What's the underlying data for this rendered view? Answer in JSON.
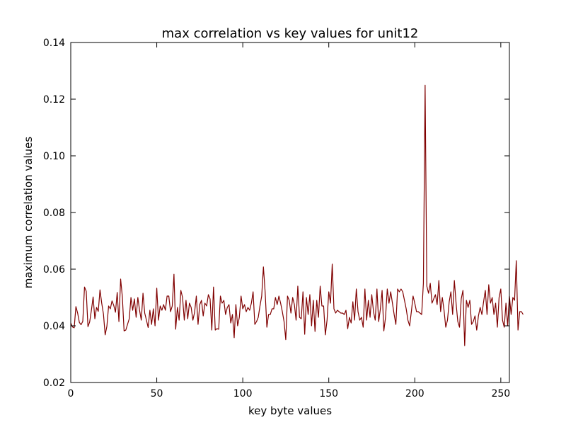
{
  "chart_data": {
    "type": "line",
    "title": "max correlation vs key values for unit12",
    "xlabel": "key byte values",
    "ylabel": "maximum correlation values",
    "xlim": [
      0,
      255
    ],
    "ylim": [
      0.02,
      0.14
    ],
    "xticks": [
      0,
      50,
      100,
      150,
      200,
      250
    ],
    "yticks": [
      0.02,
      0.04,
      0.06,
      0.08,
      0.1,
      0.12,
      0.14
    ],
    "xtick_labels": [
      "0",
      "50",
      "100",
      "150",
      "200",
      "250"
    ],
    "ytick_labels": [
      "0.02",
      "0.04",
      "0.06",
      "0.08",
      "0.10",
      "0.12",
      "0.14"
    ],
    "grid": false,
    "legend": "none",
    "line_color": "#800000",
    "series": [
      {
        "values": [
          0.041,
          0.0396,
          0.0393,
          0.0468,
          0.0445,
          0.0412,
          0.0404,
          0.0416,
          0.0537,
          0.0522,
          0.0397,
          0.0414,
          0.0455,
          0.0502,
          0.0425,
          0.0465,
          0.0451,
          0.0527,
          0.048,
          0.0442,
          0.0368,
          0.0398,
          0.047,
          0.046,
          0.0488,
          0.0472,
          0.0448,
          0.0518,
          0.0415,
          0.0565,
          0.0502,
          0.0382,
          0.0385,
          0.0405,
          0.0425,
          0.05,
          0.0455,
          0.0495,
          0.043,
          0.05,
          0.0455,
          0.042,
          0.0515,
          0.0445,
          0.042,
          0.0394,
          0.0455,
          0.0405,
          0.046,
          0.04,
          0.0533,
          0.042,
          0.047,
          0.0455,
          0.0475,
          0.0455,
          0.0505,
          0.0505,
          0.045,
          0.047,
          0.0582,
          0.0388,
          0.0465,
          0.042,
          0.0525,
          0.05,
          0.042,
          0.049,
          0.0425,
          0.048,
          0.0465,
          0.042,
          0.0448,
          0.0505,
          0.0405,
          0.0475,
          0.049,
          0.0435,
          0.048,
          0.047,
          0.051,
          0.0495,
          0.0385,
          0.0537,
          0.0385,
          0.039,
          0.0388,
          0.0505,
          0.048,
          0.049,
          0.044,
          0.0465,
          0.0475,
          0.041,
          0.044,
          0.0358,
          0.0475,
          0.04,
          0.043,
          0.0505,
          0.046,
          0.0475,
          0.045,
          0.0465,
          0.0455,
          0.048,
          0.052,
          0.0405,
          0.0415,
          0.043,
          0.047,
          0.0505,
          0.0608,
          0.052,
          0.0395,
          0.044,
          0.044,
          0.046,
          0.046,
          0.05,
          0.0475,
          0.0505,
          0.048,
          0.045,
          0.0415,
          0.0351,
          0.0505,
          0.049,
          0.0445,
          0.05,
          0.0475,
          0.042,
          0.054,
          0.043,
          0.0425,
          0.052,
          0.037,
          0.05,
          0.044,
          0.051,
          0.04,
          0.049,
          0.038,
          0.049,
          0.043,
          0.054,
          0.047,
          0.047,
          0.0368,
          0.042,
          0.052,
          0.048,
          0.0618,
          0.046,
          0.0445,
          0.0455,
          0.045,
          0.0445,
          0.0445,
          0.044,
          0.0455,
          0.039,
          0.043,
          0.041,
          0.0485,
          0.042,
          0.053,
          0.045,
          0.042,
          0.043,
          0.0395,
          0.053,
          0.042,
          0.049,
          0.043,
          0.051,
          0.045,
          0.042,
          0.053,
          0.0415,
          0.046,
          0.0525,
          0.0382,
          0.043,
          0.053,
          0.048,
          0.052,
          0.048,
          0.044,
          0.0405,
          0.053,
          0.052,
          0.053,
          0.052,
          0.049,
          0.046,
          0.042,
          0.04,
          0.045,
          0.0505,
          0.048,
          0.045,
          0.045,
          0.0445,
          0.044,
          0.055,
          0.1249,
          0.054,
          0.0515,
          0.055,
          0.048,
          0.0495,
          0.051,
          0.0475,
          0.056,
          0.045,
          0.05,
          0.0455,
          0.0395,
          0.042,
          0.0485,
          0.052,
          0.044,
          0.056,
          0.048,
          0.0415,
          0.0395,
          0.0495,
          0.0525,
          0.033,
          0.049,
          0.0465,
          0.049,
          0.0405,
          0.0415,
          0.0435,
          0.0385,
          0.0435,
          0.0465,
          0.044,
          0.0485,
          0.0525,
          0.044,
          0.0545,
          0.048,
          0.05,
          0.044,
          0.048,
          0.0395,
          0.05,
          0.053,
          0.042,
          0.0395,
          0.048,
          0.04,
          0.0505,
          0.044,
          0.05,
          0.049,
          0.063,
          0.0385,
          0.045,
          0.045,
          0.044
        ]
      }
    ]
  }
}
